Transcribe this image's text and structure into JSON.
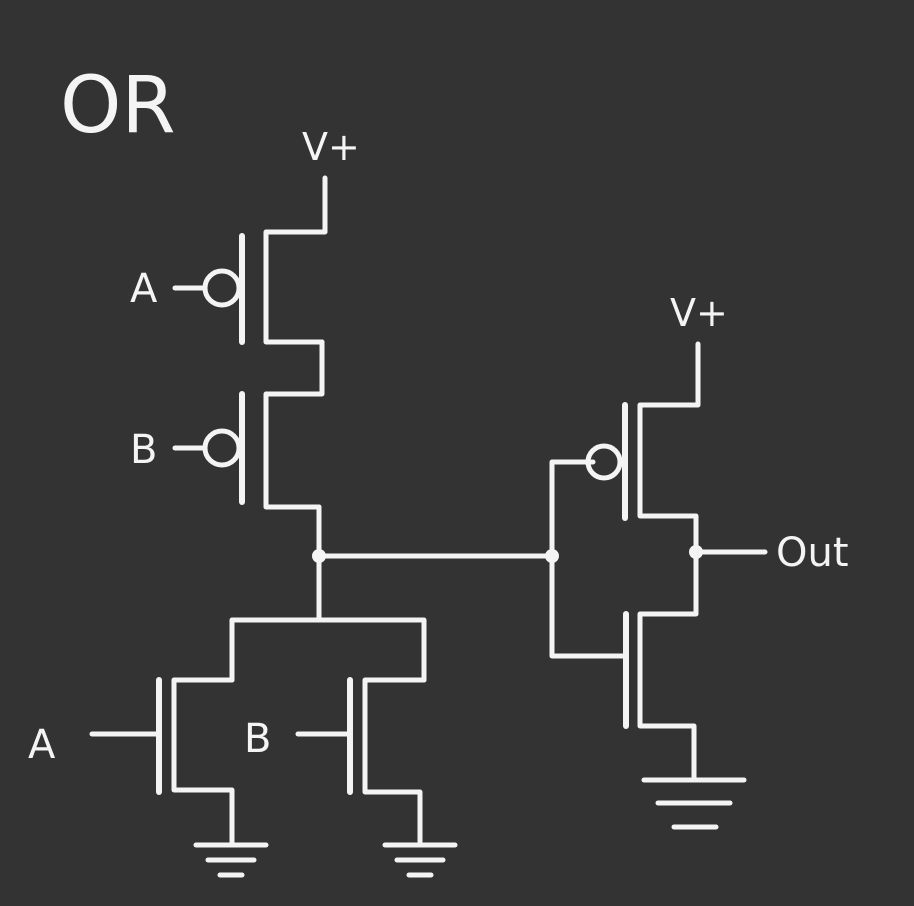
{
  "diagram": {
    "title": "OR",
    "labels": {
      "vplus_left": "V+",
      "vplus_right": "V+",
      "pmos_a": "A",
      "pmos_b": "B",
      "nmos_a": "A",
      "nmos_b": "B",
      "output": "Out"
    },
    "colors": {
      "background": "#333333",
      "ink": "#f4f4f4"
    }
  }
}
